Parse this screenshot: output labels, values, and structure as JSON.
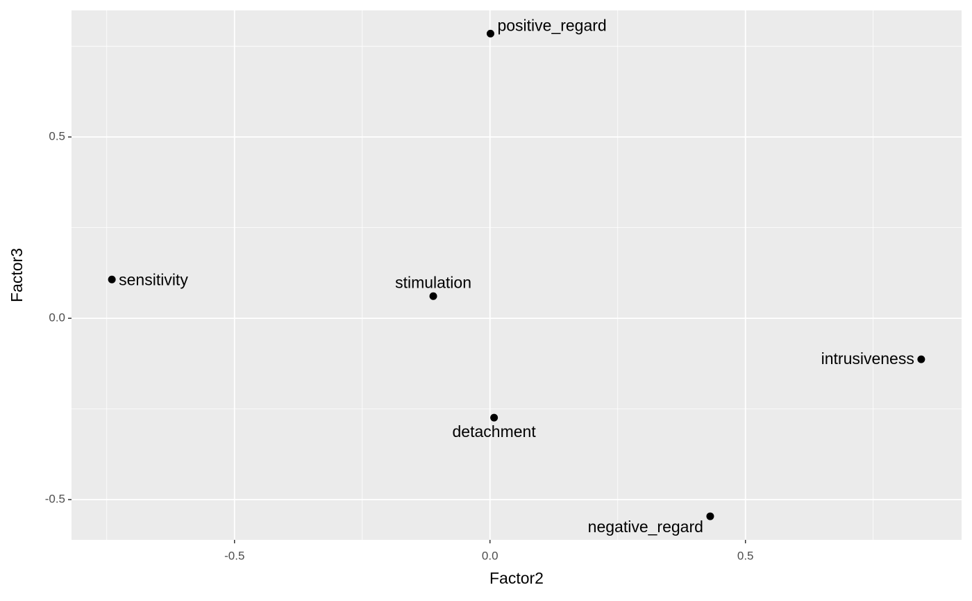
{
  "chart_data": {
    "type": "scatter",
    "x_label": "Factor2",
    "y_label": "Factor3",
    "labels": [
      "positive_regard",
      "sensitivity",
      "stimulation",
      "intrusiveness",
      "detachment",
      "negative_regard"
    ],
    "x": [
      0.001,
      -0.74,
      -0.111,
      0.844,
      0.008,
      0.431
    ],
    "y": [
      0.785,
      0.107,
      0.061,
      -0.113,
      -0.274,
      -0.546
    ],
    "color": "#000000",
    "xlim": [
      -0.819,
      0.923
    ],
    "ylim": [
      -0.611,
      0.849
    ],
    "xticks": [
      -0.5,
      {
        "value": 0,
        "label": "0.0"
      },
      0.5
    ],
    "yticks": [
      -0.5,
      {
        "value": 0,
        "label": "0.0"
      },
      0.5
    ],
    "grid": true
  }
}
